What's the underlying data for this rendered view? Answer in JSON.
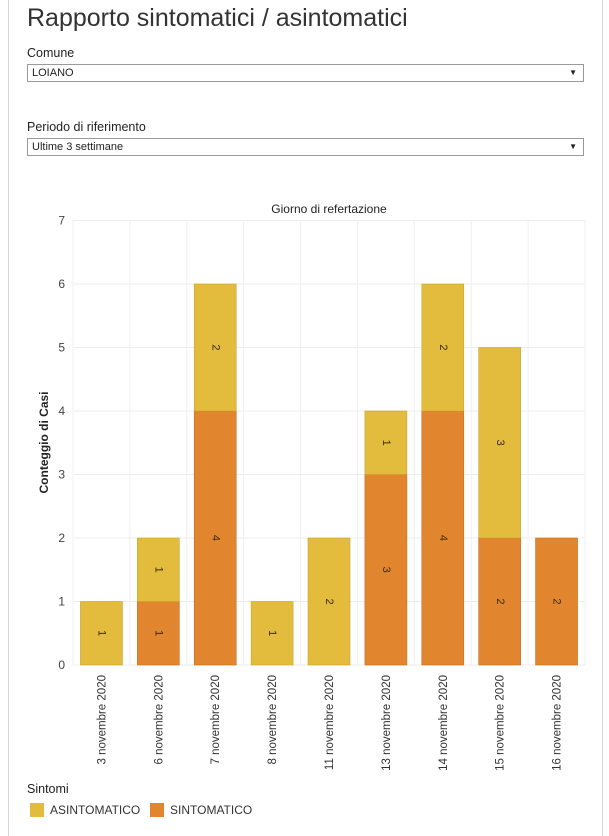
{
  "title": "Rapporto sintomatici / asintomatici",
  "filters": {
    "comune": {
      "label": "Comune",
      "value": "LOIANO"
    },
    "periodo": {
      "label": "Periodo di riferimento",
      "value": "Ultime 3 settimane"
    }
  },
  "legend": {
    "title": "Sintomi",
    "items": [
      {
        "label": "ASINTOMATICO",
        "color": "#E3BC3E"
      },
      {
        "label": "SINTOMATICO",
        "color": "#E2852F"
      }
    ]
  },
  "chart_data": {
    "type": "bar",
    "stacked": true,
    "title": "Giorno di refertazione",
    "ylabel": "Conteggio di Casi",
    "ylim": [
      0,
      7
    ],
    "yticks": [
      0,
      1,
      2,
      3,
      4,
      5,
      6,
      7
    ],
    "categories": [
      "3 novembre 2020",
      "6 novembre 2020",
      "7 novembre 2020",
      "8 novembre 2020",
      "11 novembre 2020",
      "13 novembre 2020",
      "14 novembre 2020",
      "15 novembre 2020",
      "16 novembre 2020"
    ],
    "series": [
      {
        "name": "SINTOMATICO",
        "color": "#E2852F",
        "values": [
          0,
          1,
          4,
          0,
          0,
          3,
          4,
          2,
          2
        ]
      },
      {
        "name": "ASINTOMATICO",
        "color": "#E3BC3E",
        "values": [
          1,
          1,
          2,
          1,
          2,
          1,
          2,
          3,
          0
        ]
      }
    ]
  }
}
